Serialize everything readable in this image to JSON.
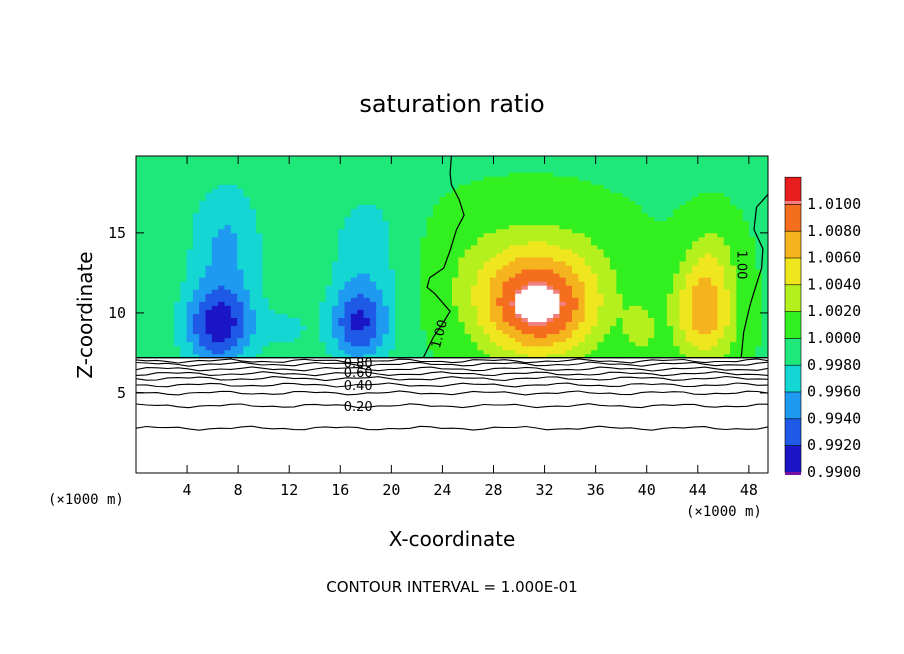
{
  "chart_data": {
    "type": "heatmap",
    "title": "saturation ratio",
    "xlabel": "X-coordinate",
    "ylabel": "Z-coordinate",
    "x_unit_left": "(×1000 m)",
    "x_unit_right": "(×1000 m)",
    "xlim": [
      0,
      49.5
    ],
    "ylim": [
      0,
      19.8
    ],
    "x_ticks": [
      4,
      8,
      12,
      16,
      20,
      24,
      28,
      32,
      36,
      40,
      44,
      48
    ],
    "x_tick_labels": [
      "4",
      "8",
      "12",
      "16",
      "20",
      "24",
      "28",
      "32",
      "36",
      "40",
      "44",
      "48"
    ],
    "y_ticks": [
      5,
      10,
      15
    ],
    "y_tick_labels": [
      "5",
      "10",
      "15"
    ],
    "colorbar": {
      "levels": [
        0.99,
        0.992,
        0.994,
        0.996,
        0.998,
        1.0,
        1.002,
        1.004,
        1.006,
        1.008,
        1.01
      ],
      "labels": [
        "0.9900",
        "0.9920",
        "0.9940",
        "0.9960",
        "0.9980",
        "1.0000",
        "1.0020",
        "1.0040",
        "1.0060",
        "1.0080",
        "1.0100"
      ],
      "colors": [
        "#7a0fa0",
        "#1a16c8",
        "#1e5ae6",
        "#1e9bf0",
        "#14d6d2",
        "#1ee87a",
        "#32f020",
        "#b4f01e",
        "#f0e61e",
        "#f5b41e",
        "#f56e1e",
        "#e81e1e",
        "#f08080"
      ]
    },
    "field": {
      "background_value": 0.9998,
      "lower_boundary_km": 7.2,
      "blobs": [
        {
          "x": 6.5,
          "z": 9.2,
          "sx": 2.8,
          "sz": 2.6,
          "amp": -0.0085
        },
        {
          "x": 17.5,
          "z": 9.3,
          "sx": 2.4,
          "sz": 2.4,
          "amp": -0.0075
        },
        {
          "x": 7.0,
          "z": 14.5,
          "sx": 3.0,
          "sz": 4.0,
          "amp": -0.004
        },
        {
          "x": 18.0,
          "z": 14.0,
          "sx": 3.0,
          "sz": 4.0,
          "amp": -0.003
        },
        {
          "x": 12.0,
          "z": 9.0,
          "sx": 2.0,
          "sz": 1.5,
          "amp": -0.002
        },
        {
          "x": 31.5,
          "z": 10.2,
          "sx": 4.5,
          "sz": 3.0,
          "amp": 0.01
        },
        {
          "x": 31.0,
          "z": 12.8,
          "sx": 6.5,
          "sz": 3.5,
          "amp": 0.0035
        },
        {
          "x": 44.5,
          "z": 10.0,
          "sx": 2.4,
          "sz": 3.0,
          "amp": 0.0075
        },
        {
          "x": 45.0,
          "z": 13.5,
          "sx": 2.0,
          "sz": 2.5,
          "amp": 0.0025
        },
        {
          "x": 39.5,
          "z": 9.0,
          "sx": 1.2,
          "sz": 1.5,
          "amp": 0.003
        }
      ]
    },
    "contours": {
      "interval": 0.1,
      "levels_shown": [
        0.2,
        0.4,
        0.6,
        0.8,
        1.0
      ],
      "levels_below_km": [
        2.8,
        4.2,
        5.0,
        5.5,
        5.9,
        6.2,
        6.5,
        6.8,
        7.0
      ],
      "inline_labels": [
        {
          "text": "0.80",
          "x": 17.4,
          "z": 6.9
        },
        {
          "text": "0.60",
          "x": 17.4,
          "z": 6.3
        },
        {
          "text": "0.40",
          "x": 17.4,
          "z": 5.5
        },
        {
          "text": "0.20",
          "x": 17.4,
          "z": 4.2
        },
        {
          "text": "1.00",
          "x": 23.7,
          "z": 8.7
        },
        {
          "text": "1.00",
          "x": 47.5,
          "z": 13.0
        }
      ],
      "line_100_left": [
        [
          22.5,
          7.2
        ],
        [
          23.3,
          8.5
        ],
        [
          24.0,
          9.3
        ],
        [
          24.6,
          10.1
        ],
        [
          23.4,
          11.2
        ],
        [
          22.8,
          11.6
        ],
        [
          23.0,
          12.2
        ],
        [
          24.1,
          12.8
        ],
        [
          24.6,
          13.9
        ],
        [
          25.1,
          15.2
        ],
        [
          25.7,
          16.1
        ],
        [
          25.3,
          17.1
        ],
        [
          24.7,
          18.0
        ],
        [
          24.6,
          18.7
        ],
        [
          24.7,
          19.8
        ]
      ],
      "line_100_right": [
        [
          47.4,
          7.2
        ],
        [
          47.6,
          8.8
        ],
        [
          48.1,
          10.5
        ],
        [
          48.6,
          11.8
        ],
        [
          49.0,
          12.8
        ],
        [
          49.1,
          14.0
        ],
        [
          48.4,
          15.2
        ],
        [
          48.6,
          16.6
        ],
        [
          49.5,
          17.4
        ]
      ]
    },
    "footnote": "CONTOUR INTERVAL = 1.000E-01"
  }
}
